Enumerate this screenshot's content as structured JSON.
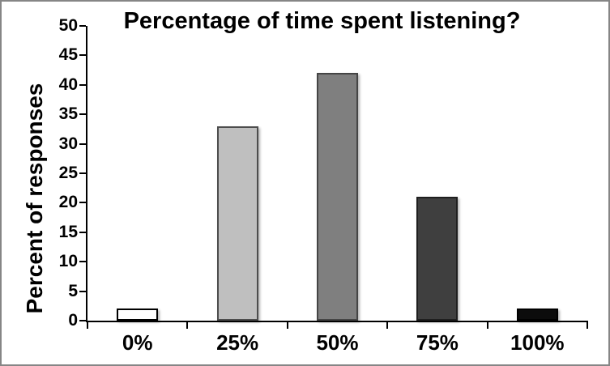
{
  "frame": {
    "border_color": "#868686",
    "background_color": "#ffffff"
  },
  "chart_data": {
    "type": "bar",
    "title": "Percentage of time spent listening?",
    "xlabel": "",
    "ylabel": "Percent of responses",
    "categories": [
      "0%",
      "25%",
      "50%",
      "75%",
      "100%"
    ],
    "values": [
      2,
      33,
      42,
      21,
      2
    ],
    "ylim": [
      0,
      50
    ],
    "ytick_step": 5,
    "yticks": [
      0,
      5,
      10,
      15,
      20,
      25,
      30,
      35,
      40,
      45,
      50
    ],
    "grid": false,
    "legend": null,
    "axis_color": "#000000",
    "text_color": "#000000",
    "bar_fill_colors": [
      "#ffffff",
      "#bfbfbf",
      "#7f7f7f",
      "#3f3f3f",
      "#0c0c0c"
    ],
    "bar_border_colors": [
      "#000000",
      "#4d4d4d",
      "#454545",
      "#1f1f1f",
      "#000000"
    ]
  }
}
